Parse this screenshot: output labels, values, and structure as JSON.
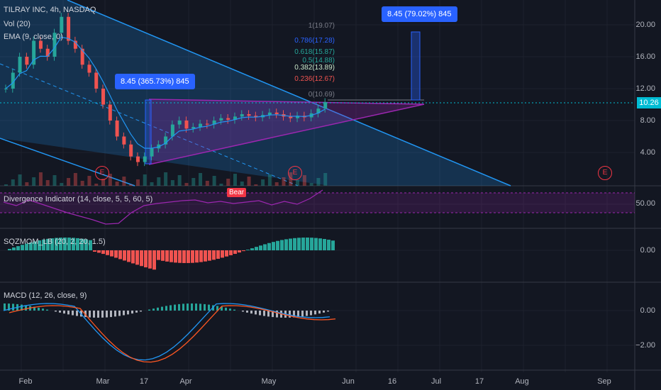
{
  "symbol": {
    "name": "TILRAY INC, 4h, NASDAQ",
    "vol": "Vol (20)",
    "ema": "EMA (9, close, 0)"
  },
  "indicators": {
    "divergence": "Divergence Indicator (14, close, 5, 5, 60, 5)",
    "sqzmom": "SQZMOM_LB (20, 2, 20, 1.5)",
    "macd": "MACD (12, 26, close, 9)"
  },
  "callouts": {
    "left": "8.45 (365.73%) 845",
    "right": "8.45 (79.02%) 845",
    "bear": "Bear"
  },
  "fib_levels": [
    "1(19.07)",
    "0.786(17.28)",
    "0.618(15.87)",
    "0.5(14.88)",
    "0.382(13.89)",
    "0.236(12.67)",
    "0(10.69)"
  ],
  "event_marker": "E",
  "price_axis": [
    "20.00",
    "16.00",
    "12.00",
    "8.00",
    "4.00"
  ],
  "current_price": "10.26",
  "div_axis": [
    "50.00"
  ],
  "sqz_axis": [
    "0.00"
  ],
  "macd_axis": [
    "0.00",
    "−2.00"
  ],
  "time_axis": [
    "Feb",
    "Mar",
    "17",
    "Apr",
    "May",
    "Jun",
    "16",
    "Jul",
    "17",
    "Aug",
    "Sep"
  ],
  "colors": {
    "up": "#26a69a",
    "down": "#ef5350",
    "accent": "#2962ff",
    "channel": "#2196f3",
    "triangle": "#9c27b0"
  }
}
